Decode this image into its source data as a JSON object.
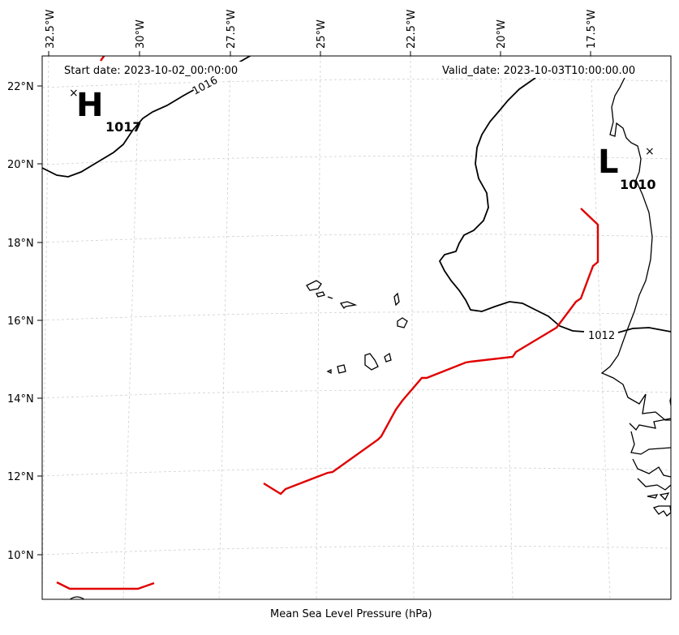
{
  "header": {
    "start_date": "Start date: 2023-10-02_00:00:00",
    "valid_date": "Valid_date: 2023-10-03T10:00:00.00"
  },
  "axes": {
    "lon_ticks": [
      "32.5°W",
      "30°W",
      "27.5°W",
      "25°W",
      "22.5°W",
      "20°W",
      "17.5°W"
    ],
    "lat_ticks": [
      "22°N",
      "20°N",
      "18°N",
      "16°N",
      "14°N",
      "12°N",
      "10°N"
    ],
    "bottom_label": "Mean Sea Level Pressure (hPa)"
  },
  "pressure_centers": [
    {
      "type": "H",
      "value": "1017"
    },
    {
      "type": "L",
      "value": "1010"
    }
  ],
  "isobar_labels": [
    "1016",
    "1012"
  ],
  "colors": {
    "front": "#e00000",
    "isobar": "#000000",
    "grid": "#cfcfcf",
    "coastline": "#000000"
  }
}
